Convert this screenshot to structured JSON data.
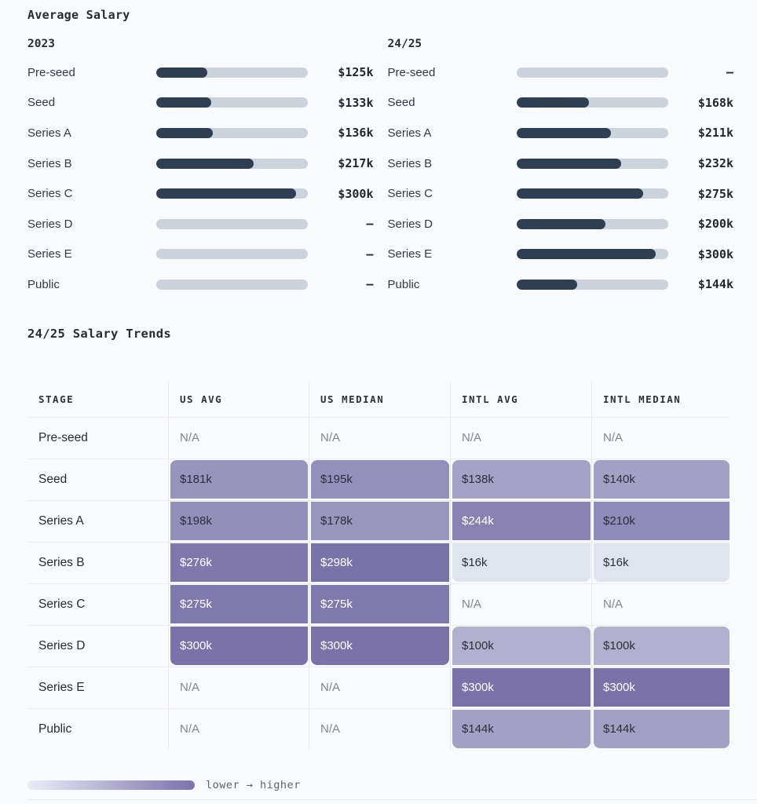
{
  "page": {
    "section1_title": "Average Salary",
    "section2_title": "24/25 Salary Trends"
  },
  "chart_data": [
    {
      "type": "bar",
      "title": "2023",
      "categories": [
        "Pre-seed",
        "Seed",
        "Series A",
        "Series B",
        "Series C",
        "Series D",
        "Series E",
        "Public"
      ],
      "values": [
        125,
        133,
        136,
        217,
        300,
        null,
        null,
        null
      ],
      "value_labels": [
        "$125k",
        "$133k",
        "$136k",
        "$217k",
        "$300k",
        "–",
        "–",
        "–"
      ],
      "missing_label": "–",
      "xlim": [
        24,
        324
      ],
      "bar_color": "#2e3e53",
      "track_color": "#cdd3dc",
      "grid": "off",
      "orientation": "horizontal"
    },
    {
      "type": "bar",
      "title": "24/25",
      "categories": [
        "Pre-seed",
        "Seed",
        "Series A",
        "Series B",
        "Series C",
        "Series D",
        "Series E",
        "Public"
      ],
      "values": [
        null,
        168,
        211,
        232,
        275,
        200,
        300,
        144
      ],
      "value_labels": [
        "–",
        "$168k",
        "$211k",
        "$232k",
        "$275k",
        "$200k",
        "$300k",
        "$144k"
      ],
      "missing_label": "–",
      "xlim": [
        24,
        324
      ],
      "bar_color": "#2e3e53",
      "track_color": "#cdd3dc",
      "grid": "off",
      "orientation": "horizontal"
    }
  ],
  "trends_table": {
    "type": "heatmap",
    "columns": [
      "STAGE",
      "US AVG",
      "US MEDIAN",
      "INTL AVG",
      "INTL MEDIAN"
    ],
    "rows": [
      {
        "stage": "Pre-seed",
        "values": [
          null,
          null,
          null,
          null
        ],
        "labels": [
          "N/A",
          "N/A",
          "N/A",
          "N/A"
        ]
      },
      {
        "stage": "Seed",
        "values": [
          181,
          195,
          138,
          140
        ],
        "labels": [
          "$181k",
          "$195k",
          "$138k",
          "$140k"
        ]
      },
      {
        "stage": "Series A",
        "values": [
          198,
          178,
          244,
          210
        ],
        "labels": [
          "$198k",
          "$178k",
          "$244k",
          "$210k"
        ]
      },
      {
        "stage": "Series B",
        "values": [
          276,
          298,
          16,
          16
        ],
        "labels": [
          "$276k",
          "$298k",
          "$16k",
          "$16k"
        ]
      },
      {
        "stage": "Series C",
        "values": [
          275,
          275,
          null,
          null
        ],
        "labels": [
          "$275k",
          "$275k",
          "N/A",
          "N/A"
        ]
      },
      {
        "stage": "Series D",
        "values": [
          300,
          300,
          100,
          100
        ],
        "labels": [
          "$300k",
          "$300k",
          "$100k",
          "$100k"
        ]
      },
      {
        "stage": "Series E",
        "values": [
          null,
          null,
          300,
          300
        ],
        "labels": [
          "N/A",
          "N/A",
          "$300k",
          "$300k"
        ]
      },
      {
        "stage": "Public",
        "values": [
          null,
          null,
          144,
          144
        ],
        "labels": [
          "N/A",
          "N/A",
          "$144k",
          "$144k"
        ]
      }
    ],
    "na_label": "N/A",
    "heatmap_scale": {
      "min": 16,
      "max": 300,
      "gamma": 0.65,
      "color_low": "#e0e4ee",
      "color_high": "#7a72a9",
      "white_text_from": 0.8
    }
  },
  "legend": {
    "label": "lower → higher",
    "gradient_from": "#ebecf4",
    "gradient_to": "#7b72ad"
  }
}
